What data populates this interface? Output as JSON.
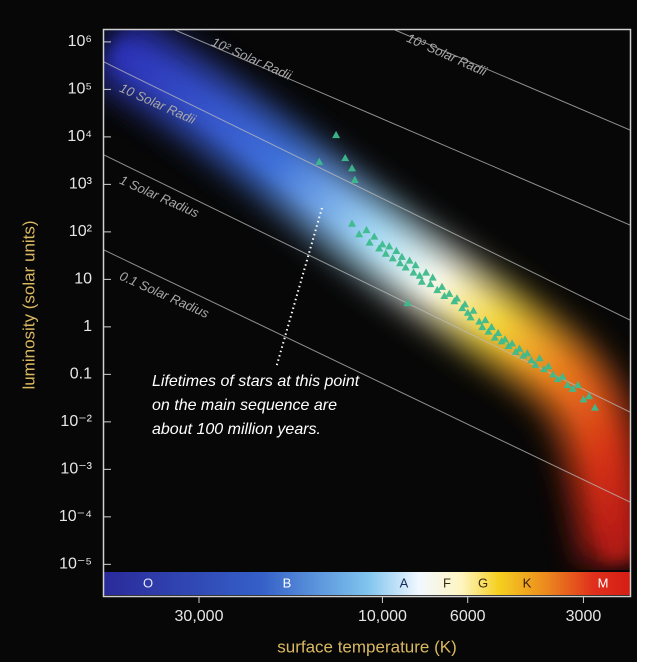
{
  "chart_data": {
    "type": "scatter",
    "xscale": "log",
    "yscale": "log",
    "xlabel": "surface temperature (K)",
    "ylabel": "luminosity (solar units)",
    "xlim": [
      53000,
      2270
    ],
    "ylim": [
      7.6e-06,
      1780000
    ],
    "xticks": [
      {
        "value": 30000,
        "label": "30,000"
      },
      {
        "value": 10000,
        "label": "10,000"
      },
      6000,
      3000
    ],
    "yticks": [
      {
        "value": 1000000,
        "label": "10⁶"
      },
      {
        "value": 100000,
        "label": "10⁵"
      },
      {
        "value": 10000,
        "label": "10⁴"
      },
      {
        "value": 1000,
        "label": "10³"
      },
      {
        "value": 100,
        "label": "10²"
      },
      10,
      1,
      0.1,
      {
        "value": 0.01,
        "label": "10⁻²"
      },
      {
        "value": 0.001,
        "label": "10⁻³"
      },
      {
        "value": 0.0001,
        "label": "10⁻⁴"
      },
      {
        "value": 1e-05,
        "label": "10⁻⁵"
      }
    ],
    "color": "#3dba8c",
    "x": [
      13200,
      14600,
      12500,
      12000,
      11800,
      8600,
      12000,
      11500,
      11000,
      10800,
      10500,
      10200,
      10000,
      9800,
      9600,
      9400,
      9200,
      9000,
      8900,
      8700,
      8500,
      8300,
      8200,
      8000,
      7900,
      7700,
      7500,
      7400,
      7200,
      7000,
      6900,
      6700,
      6500,
      6400,
      6200,
      6100,
      6000,
      5900,
      5800,
      5600,
      5500,
      5400,
      5300,
      5200,
      5100,
      5000,
      4900,
      4800,
      4700,
      4600,
      4500,
      4400,
      4300,
      4200,
      4100,
      4000,
      3900,
      3800,
      3700,
      3600,
      3500,
      3400,
      3300,
      3200,
      3100,
      3000,
      2900,
      2800
    ],
    "values": [
      11000,
      3000,
      3600,
      2200,
      1250,
      3.2,
      150,
      90,
      110,
      60,
      80,
      45,
      55,
      35,
      50,
      28,
      40,
      22,
      30,
      18,
      25,
      14,
      20,
      12,
      9,
      14,
      8,
      11,
      6,
      7,
      4.5,
      5,
      3.5,
      4,
      2.5,
      3,
      2,
      1.6,
      2.2,
      1.3,
      1.0,
      1.4,
      0.8,
      1.0,
      0.6,
      0.75,
      0.5,
      0.55,
      0.4,
      0.45,
      0.3,
      0.35,
      0.25,
      0.28,
      0.2,
      0.16,
      0.22,
      0.13,
      0.15,
      0.1,
      0.08,
      0.09,
      0.06,
      0.05,
      0.06,
      0.03,
      0.035,
      0.02
    ],
    "spectral_classes": [
      "O",
      "B",
      "A",
      "F",
      "G",
      "K",
      "M"
    ],
    "radius_labels": [
      "10² Solar Radii",
      "10³ Solar Radii",
      "10 Solar Radii",
      "1 Solar Radius",
      "0.1 Solar Radius"
    ],
    "annotation": [
      "Lifetimes of stars at this point",
      "on the main sequence are",
      "about 100 million years."
    ]
  }
}
